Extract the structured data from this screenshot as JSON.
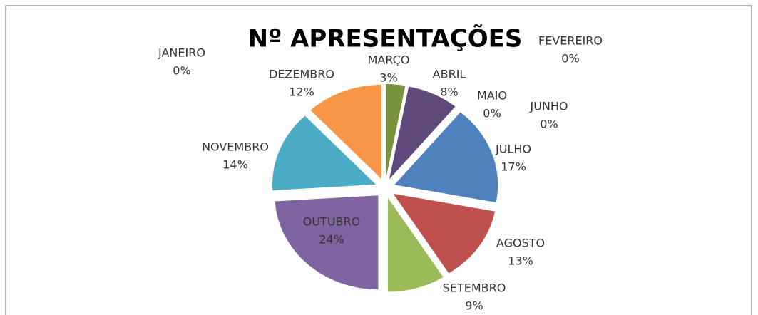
{
  "chart_data": {
    "type": "pie",
    "title": "Nº APRESENTAÇÕES",
    "categories": [
      "JANEIRO",
      "FEVEREIRO",
      "MARÇO",
      "ABRIL",
      "MAIO",
      "JUNHO",
      "JULHO",
      "AGOSTO",
      "SETEMBRO",
      "OUTUBRO",
      "NOVEMBRO",
      "DEZEMBRO"
    ],
    "values": [
      0,
      0,
      3,
      8,
      0,
      0,
      17,
      13,
      9,
      24,
      14,
      12
    ],
    "value_labels": [
      "0%",
      "0%",
      "3%",
      "8%",
      "0%",
      "0%",
      "17%",
      "13%",
      "9%",
      "24%",
      "14%",
      "12%"
    ],
    "colors": [
      "#4f81bd",
      "#c0504d",
      "#77933c",
      "#604a7b",
      "#31859c",
      "#e46c0a",
      "#4f81bd",
      "#c0504d",
      "#9bbb59",
      "#8064a2",
      "#4bacc6",
      "#f79646"
    ]
  }
}
